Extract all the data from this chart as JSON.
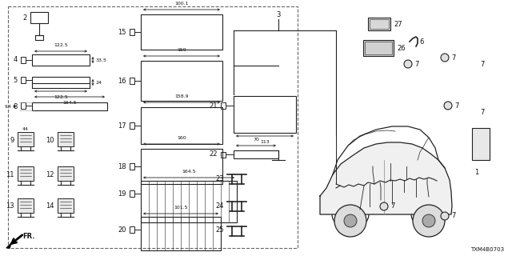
{
  "bg_color": "#ffffff",
  "line_color": "#222222",
  "text_color": "#111111",
  "diagram_code": "TXM4B0703",
  "figsize": [
    6.4,
    3.2
  ],
  "dpi": 100
}
